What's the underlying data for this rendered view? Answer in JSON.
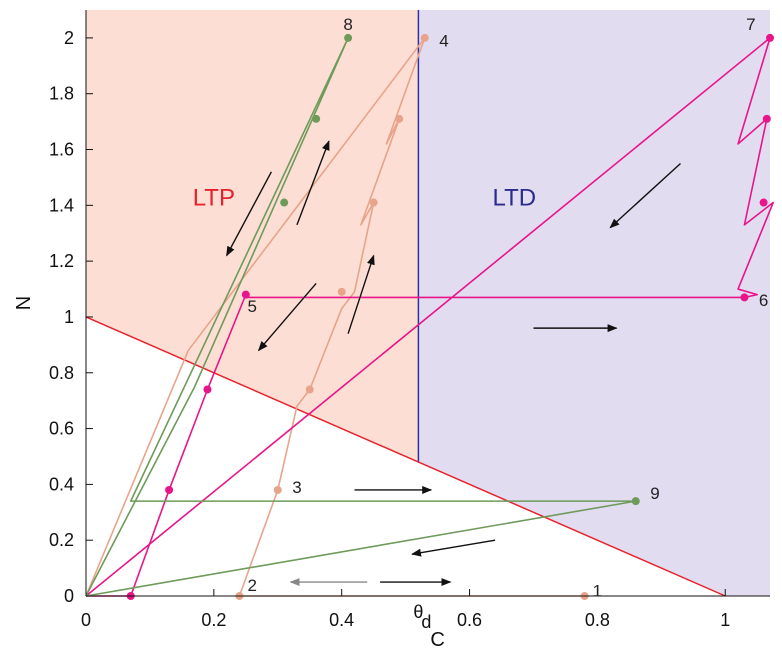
{
  "chart_data": {
    "type": "line",
    "xlabel": "C",
    "ylabel": "N",
    "xlim": [
      0,
      1.07
    ],
    "ylim": [
      0,
      2.1
    ],
    "x_ticks": [
      0,
      0.2,
      0.4,
      0.6,
      0.8,
      1
    ],
    "x_tick_labels": [
      "0",
      "0.2",
      "0.4",
      "0.6",
      "0.8",
      "1"
    ],
    "y_ticks": [
      0,
      0.2,
      0.4,
      0.6,
      0.8,
      1,
      1.2,
      1.4,
      1.6,
      1.8,
      2
    ],
    "y_tick_labels": [
      "0",
      "0.2",
      "0.4",
      "0.6",
      "0.8",
      "1",
      "1.2",
      "1.4",
      "1.6",
      "1.8",
      "2"
    ],
    "theta_label": "θ",
    "theta_sub": "d",
    "theta_d": 0.52,
    "boundary_line": {
      "x": [
        0,
        1
      ],
      "y": [
        1,
        0
      ],
      "color": "#e8222b"
    },
    "regions": [
      {
        "label": "LTP",
        "color": "#fcded4",
        "label_color": "#e8222b",
        "label_pos": [
          0.2,
          1.4
        ]
      },
      {
        "label": "LTD",
        "color": "#e2dcf1",
        "label_color": "#2b2b8e",
        "label_pos": [
          0.67,
          1.4
        ]
      }
    ],
    "theta_line_color": "#3030a0",
    "series": [
      {
        "color": "#e8a48a",
        "x": [
          0.78,
          0.24,
          0.3,
          0.33,
          0.35,
          0.4,
          0.42,
          0.45,
          0.43,
          0.49,
          0.47,
          0.53,
          0.16,
          0.0
        ],
        "y": [
          0.0,
          0.0,
          0.38,
          0.68,
          0.74,
          1.03,
          1.09,
          1.41,
          1.33,
          1.71,
          1.62,
          2.0,
          0.88,
          0.0
        ],
        "markers_x": [
          0.78,
          0.24,
          0.3,
          0.35,
          0.4,
          0.45,
          0.49,
          0.53
        ],
        "markers_y": [
          0.0,
          0.0,
          0.38,
          0.74,
          1.09,
          1.41,
          1.71,
          2.0
        ]
      },
      {
        "color": "#e8158a",
        "x": [
          0.0,
          1.07,
          1.02,
          1.065,
          1.03,
          1.075,
          1.02,
          1.05,
          1.03,
          0.25,
          0.25,
          0.19,
          0.13,
          0.07,
          0.07,
          0.0
        ],
        "y": [
          0.0,
          2.0,
          1.62,
          1.71,
          1.33,
          1.41,
          1.1,
          1.08,
          1.07,
          1.07,
          1.08,
          0.74,
          0.38,
          0.0,
          0.0,
          0.0
        ],
        "markers_x": [
          1.07,
          1.065,
          1.06,
          1.03,
          0.25,
          0.19,
          0.13,
          0.07
        ],
        "markers_y": [
          2.0,
          1.71,
          1.41,
          1.07,
          1.08,
          0.74,
          0.38,
          0.0
        ]
      },
      {
        "color": "#6e9a5a",
        "x": [
          0.0,
          0.86,
          0.07,
          0.41,
          0.17,
          0.0
        ],
        "y": [
          0.0,
          0.34,
          0.34,
          2.0,
          0.75,
          0.0
        ],
        "markers_x": [
          0.86,
          0.41,
          0.36,
          0.31
        ],
        "markers_y": [
          0.34,
          2.0,
          1.71,
          1.41
        ]
      }
    ],
    "point_labels": [
      {
        "text": "1",
        "x": 0.8,
        "y": 0.02
      },
      {
        "text": "2",
        "x": 0.26,
        "y": 0.04
      },
      {
        "text": "3",
        "x": 0.33,
        "y": 0.39
      },
      {
        "text": "4",
        "x": 0.56,
        "y": 1.99
      },
      {
        "text": "5",
        "x": 0.26,
        "y": 1.04
      },
      {
        "text": "6",
        "x": 1.06,
        "y": 1.06
      },
      {
        "text": "7",
        "x": 1.04,
        "y": 2.05
      },
      {
        "text": "8",
        "x": 0.41,
        "y": 2.05
      },
      {
        "text": "9",
        "x": 0.89,
        "y": 0.37
      }
    ],
    "arrows": [
      {
        "x1": 0.29,
        "y1": 1.52,
        "x2": 0.22,
        "y2": 1.22
      },
      {
        "x1": 0.33,
        "y1": 1.33,
        "x2": 0.38,
        "y2": 1.63
      },
      {
        "x1": 0.36,
        "y1": 1.12,
        "x2": 0.27,
        "y2": 0.88
      },
      {
        "x1": 0.41,
        "y1": 0.94,
        "x2": 0.45,
        "y2": 1.22
      },
      {
        "x1": 0.93,
        "y1": 1.55,
        "x2": 0.82,
        "y2": 1.32
      },
      {
        "x1": 0.7,
        "y1": 0.96,
        "x2": 0.83,
        "y2": 0.96
      },
      {
        "x1": 0.42,
        "y1": 0.38,
        "x2": 0.54,
        "y2": 0.38
      },
      {
        "x1": 0.64,
        "y1": 0.2,
        "x2": 0.51,
        "y2": 0.15
      },
      {
        "x1": 0.44,
        "y1": 0.05,
        "x2": 0.32,
        "y2": 0.05,
        "gray": true
      },
      {
        "x1": 0.46,
        "y1": 0.05,
        "x2": 0.57,
        "y2": 0.05
      }
    ]
  }
}
